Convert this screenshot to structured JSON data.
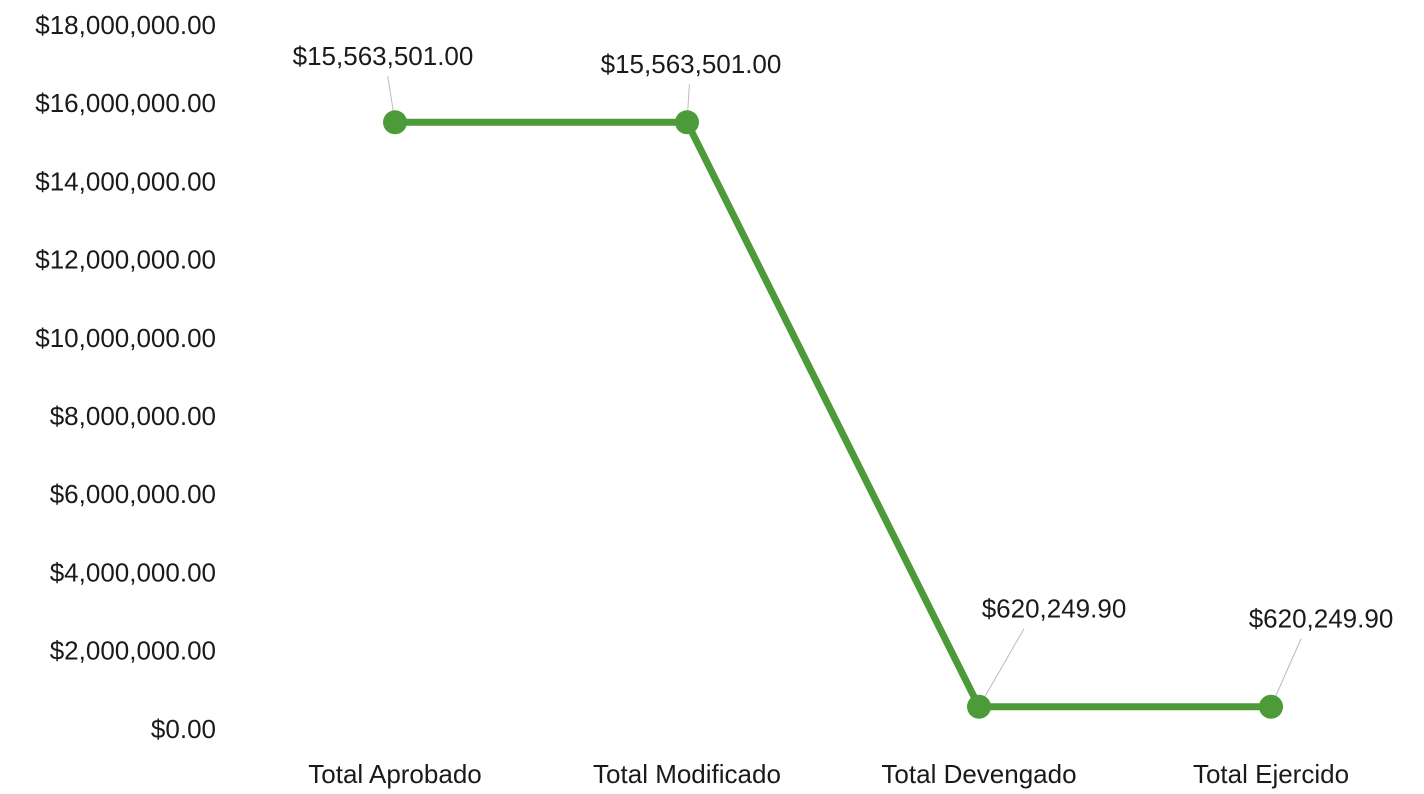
{
  "chart_data": {
    "type": "line",
    "categories": [
      "Total Aprobado",
      "Total Modificado",
      "Total Devengado",
      "Total Ejercido"
    ],
    "series": [
      {
        "name": null,
        "color": "#4c9a38",
        "values": [
          15563501,
          15563501,
          620249.9,
          620249.9
        ],
        "value_labels": [
          "$15,563,501.00",
          "$15,563,501.00",
          "$620,249.90",
          "$620,249.90"
        ]
      }
    ],
    "ylim": [
      0,
      18000000
    ],
    "yticks": [
      {
        "value": 0,
        "label": "$0.00"
      },
      {
        "value": 2000000,
        "label": "$2,000,000.00"
      },
      {
        "value": 4000000,
        "label": "$4,000,000.00"
      },
      {
        "value": 6000000,
        "label": "$6,000,000.00"
      },
      {
        "value": 8000000,
        "label": "$8,000,000.00"
      },
      {
        "value": 10000000,
        "label": "$10,000,000.00"
      },
      {
        "value": 12000000,
        "label": "$12,000,000.00"
      },
      {
        "value": 14000000,
        "label": "$14,000,000.00"
      },
      {
        "value": 16000000,
        "label": "$16,000,000.00"
      },
      {
        "value": 18000000,
        "label": "$18,000,000.00"
      }
    ],
    "grid": false
  }
}
